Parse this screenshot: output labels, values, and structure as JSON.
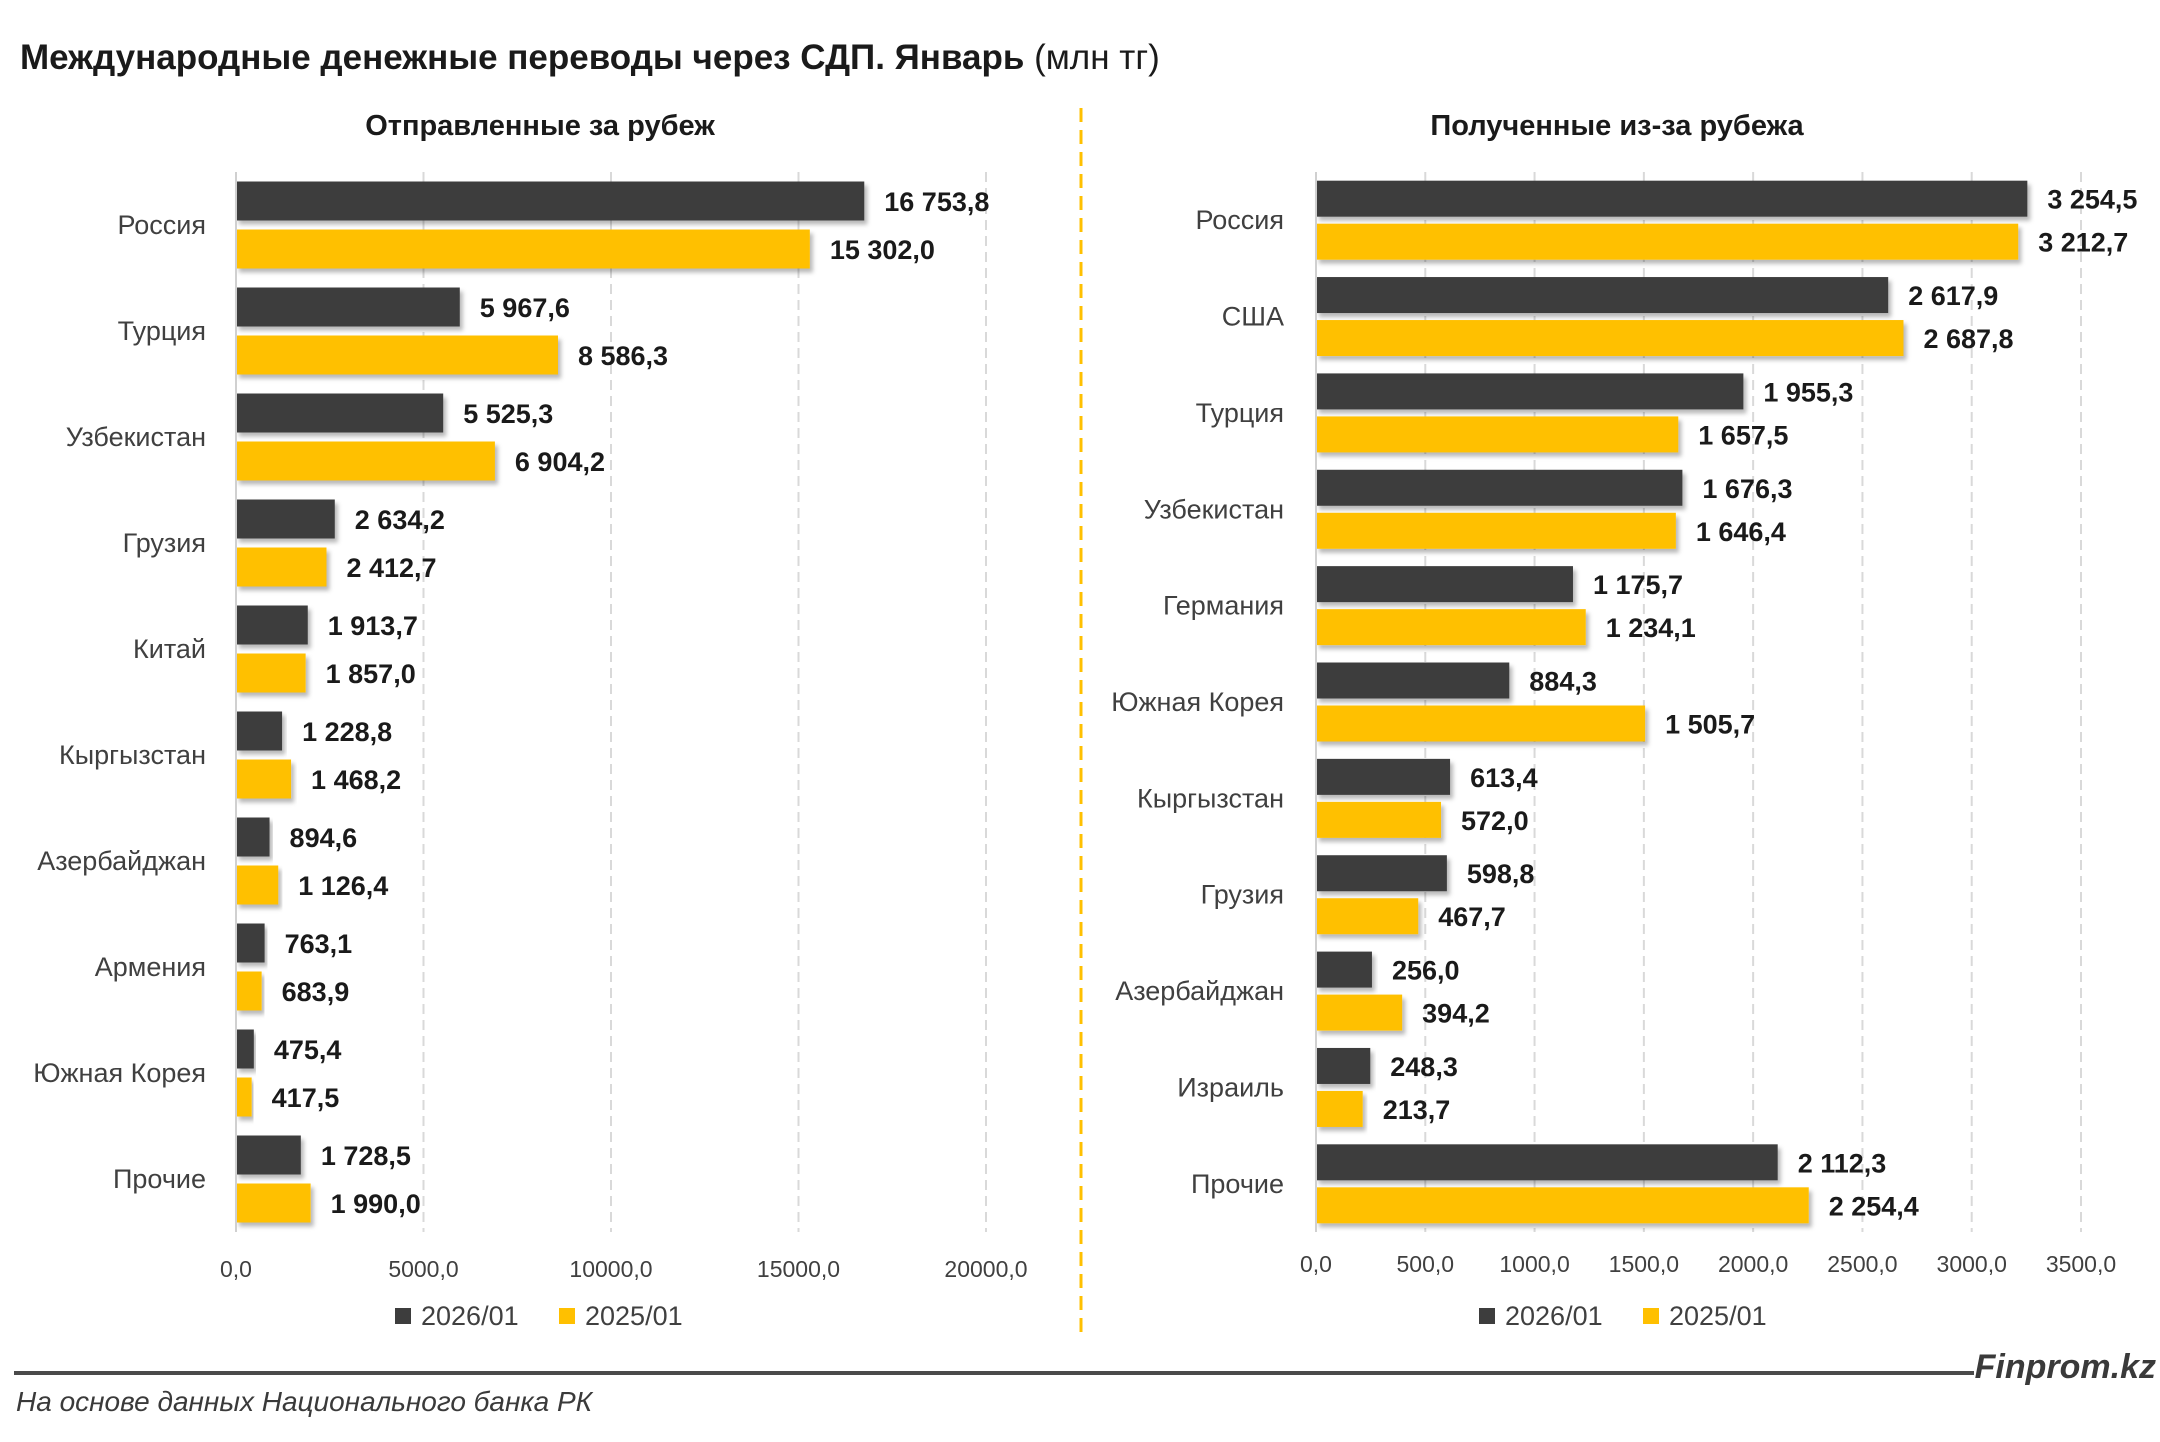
{
  "title": {
    "main": "Международные денежные переводы через СДП. Январь",
    "unit": "(млн тг)"
  },
  "footer": {
    "brand": "Finprom.kz",
    "source": "На основе данных Национального банка РК"
  },
  "colors": {
    "series_2026": "#3d3d3d",
    "series_2025": "#ffc000",
    "grid": "#d9d9d9",
    "divider": "#ffc000"
  },
  "chart_data": [
    {
      "type": "bar",
      "orientation": "horizontal",
      "title": "Отправленные за рубеж",
      "categories": [
        "Россия",
        "Турция",
        "Узбекистан",
        "Грузия",
        "Китай",
        "Кыргызстан",
        "Азербайджан",
        "Армения",
        "Южная Корея",
        "Прочие"
      ],
      "series": [
        {
          "name": "2026/01",
          "values": [
            16753.8,
            5967.6,
            5525.3,
            2634.2,
            1913.7,
            1228.8,
            894.6,
            763.1,
            475.4,
            1728.5
          ],
          "labels": [
            "16 753,8",
            "5 967,6",
            "5 525,3",
            "2 634,2",
            "1 913,7",
            "1 228,8",
            "894,6",
            "763,1",
            "475,4",
            "1 728,5"
          ]
        },
        {
          "name": "2025/01",
          "values": [
            15302.0,
            8586.3,
            6904.2,
            2412.7,
            1857.0,
            1468.2,
            1126.4,
            683.9,
            417.5,
            1990.0
          ],
          "labels": [
            "15 302,0",
            "8 586,3",
            "6 904,2",
            "2 412,7",
            "1 857,0",
            "1 468,2",
            "1 126,4",
            "683,9",
            "417,5",
            "1 990,0"
          ]
        }
      ],
      "xlim": [
        0,
        20000
      ],
      "xticks": [
        "0,0",
        "5000,0",
        "10000,0",
        "15000,0",
        "20000,0"
      ],
      "grid": true,
      "legend": "bottom-center"
    },
    {
      "type": "bar",
      "orientation": "horizontal",
      "title": "Полученные из-за рубежа",
      "categories": [
        "Россия",
        "США",
        "Турция",
        "Узбекистан",
        "Германия",
        "Южная Корея",
        "Кыргызстан",
        "Грузия",
        "Азербайджан",
        "Израиль",
        "Прочие"
      ],
      "series": [
        {
          "name": "2026/01",
          "values": [
            3254.5,
            2617.9,
            1955.3,
            1676.3,
            1175.7,
            884.3,
            613.4,
            598.8,
            256.0,
            248.3,
            2112.3
          ],
          "labels": [
            "3 254,5",
            "2 617,9",
            "1 955,3",
            "1 676,3",
            "1 175,7",
            "884,3",
            "613,4",
            "598,8",
            "256,0",
            "248,3",
            "2 112,3"
          ]
        },
        {
          "name": "2025/01",
          "values": [
            3212.7,
            2687.8,
            1657.5,
            1646.4,
            1234.1,
            1505.7,
            572.0,
            467.7,
            394.2,
            213.7,
            2254.4
          ],
          "labels": [
            "3 212,7",
            "2 687,8",
            "1 657,5",
            "1 646,4",
            "1 234,1",
            "1 505,7",
            "572,0",
            "467,7",
            "394,2",
            "213,7",
            "2 254,4"
          ]
        }
      ],
      "xlim": [
        0,
        3500
      ],
      "xticks": [
        "0,0",
        "500,0",
        "1000,0",
        "1500,0",
        "2000,0",
        "2500,0",
        "3000,0",
        "3500,0"
      ],
      "grid": true,
      "legend": "bottom-center"
    }
  ]
}
